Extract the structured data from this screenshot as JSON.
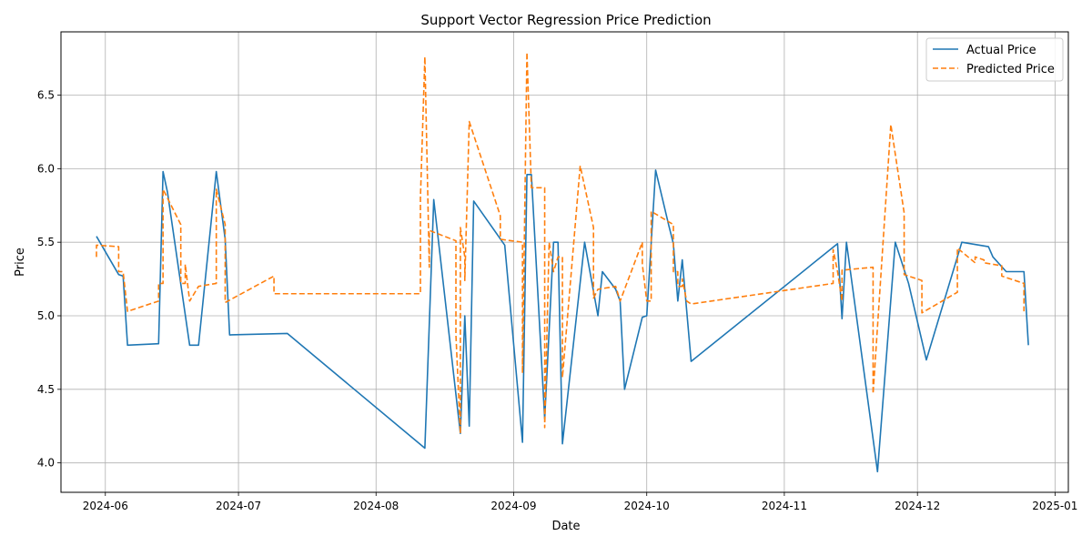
{
  "chart_data": {
    "type": "line",
    "title": "Support Vector Regression Price Prediction",
    "xlabel": "Date",
    "ylabel": "Price",
    "xlim": [
      "2024-05-22",
      "2025-01-04"
    ],
    "ylim": [
      3.8,
      6.93
    ],
    "x_ticks": [
      "2024-06",
      "2024-07",
      "2024-08",
      "2024-09",
      "2024-10",
      "2024-11",
      "2024-12",
      "2025-01"
    ],
    "y_ticks": [
      "4.0",
      "4.5",
      "5.0",
      "5.5",
      "6.0",
      "6.5"
    ],
    "grid": true,
    "legend": "top-right",
    "series": [
      {
        "name": "Actual Price",
        "color": "#1f77b4",
        "style": "solid",
        "points": [
          [
            "2024-05-30",
            5.54
          ],
          [
            "2024-06-04",
            5.28
          ],
          [
            "2024-06-05",
            5.27
          ],
          [
            "2024-06-06",
            4.8
          ],
          [
            "2024-06-13",
            4.81
          ],
          [
            "2024-06-14",
            5.98
          ],
          [
            "2024-06-15",
            5.84
          ],
          [
            "2024-06-20",
            4.8
          ],
          [
            "2024-06-22",
            4.8
          ],
          [
            "2024-06-26",
            5.98
          ],
          [
            "2024-06-28",
            5.52
          ],
          [
            "2024-06-29",
            4.87
          ],
          [
            "2024-07-12",
            4.88
          ],
          [
            "2024-08-12",
            4.1
          ],
          [
            "2024-08-14",
            5.79
          ],
          [
            "2024-08-20",
            4.2
          ],
          [
            "2024-08-21",
            5.0
          ],
          [
            "2024-08-22",
            4.25
          ],
          [
            "2024-08-23",
            5.78
          ],
          [
            "2024-08-30",
            5.48
          ],
          [
            "2024-09-03",
            4.14
          ],
          [
            "2024-09-04",
            5.96
          ],
          [
            "2024-09-05",
            5.96
          ],
          [
            "2024-09-08",
            4.3
          ],
          [
            "2024-09-10",
            5.5
          ],
          [
            "2024-09-11",
            5.5
          ],
          [
            "2024-09-12",
            4.13
          ],
          [
            "2024-09-17",
            5.5
          ],
          [
            "2024-09-20",
            5.0
          ],
          [
            "2024-09-21",
            5.3
          ],
          [
            "2024-09-24",
            5.18
          ],
          [
            "2024-09-25",
            5.1
          ],
          [
            "2024-09-26",
            4.5
          ],
          [
            "2024-09-30",
            4.99
          ],
          [
            "2024-10-01",
            5.0
          ],
          [
            "2024-10-03",
            5.99
          ],
          [
            "2024-10-06",
            5.61
          ],
          [
            "2024-10-07",
            5.49
          ],
          [
            "2024-10-08",
            5.1
          ],
          [
            "2024-10-09",
            5.38
          ],
          [
            "2024-10-11",
            4.69
          ],
          [
            "2024-11-13",
            5.49
          ],
          [
            "2024-11-14",
            4.98
          ],
          [
            "2024-11-15",
            5.5
          ],
          [
            "2024-11-22",
            3.94
          ],
          [
            "2024-11-26",
            5.5
          ],
          [
            "2024-11-29",
            5.22
          ],
          [
            "2024-12-03",
            4.7
          ],
          [
            "2024-12-11",
            5.5
          ],
          [
            "2024-12-17",
            5.47
          ],
          [
            "2024-12-18",
            5.4
          ],
          [
            "2024-12-21",
            5.3
          ],
          [
            "2024-12-25",
            5.3
          ],
          [
            "2024-12-26",
            4.8
          ]
        ]
      },
      {
        "name": "Predicted Price",
        "color": "#ff7f0e",
        "style": "dashed",
        "points": [
          [
            "2024-05-30",
            5.4
          ],
          [
            "2024-05-30",
            5.48
          ],
          [
            "2024-06-04",
            5.47
          ],
          [
            "2024-06-04",
            5.3
          ],
          [
            "2024-06-05",
            5.3
          ],
          [
            "2024-06-06",
            5.03
          ],
          [
            "2024-06-13",
            5.1
          ],
          [
            "2024-06-13",
            5.22
          ],
          [
            "2024-06-14",
            5.22
          ],
          [
            "2024-06-14",
            5.86
          ],
          [
            "2024-06-18",
            5.62
          ],
          [
            "2024-06-18",
            5.22
          ],
          [
            "2024-06-19",
            5.22
          ],
          [
            "2024-06-19",
            5.35
          ],
          [
            "2024-06-20",
            5.1
          ],
          [
            "2024-06-22",
            5.2
          ],
          [
            "2024-06-26",
            5.22
          ],
          [
            "2024-06-26",
            5.86
          ],
          [
            "2024-06-28",
            5.62
          ],
          [
            "2024-06-28",
            5.09
          ],
          [
            "2024-07-09",
            5.27
          ],
          [
            "2024-07-09",
            5.15
          ],
          [
            "2024-08-11",
            5.15
          ],
          [
            "2024-08-11",
            5.8
          ],
          [
            "2024-08-12",
            6.76
          ],
          [
            "2024-08-13",
            5.33
          ],
          [
            "2024-08-13",
            5.58
          ],
          [
            "2024-08-19",
            5.51
          ],
          [
            "2024-08-19",
            4.87
          ],
          [
            "2024-08-20",
            4.2
          ],
          [
            "2024-08-20",
            5.6
          ],
          [
            "2024-08-21",
            5.4
          ],
          [
            "2024-08-21",
            5.24
          ],
          [
            "2024-08-22",
            6.32
          ],
          [
            "2024-08-29",
            5.68
          ],
          [
            "2024-08-29",
            5.52
          ],
          [
            "2024-09-03",
            5.5
          ],
          [
            "2024-09-03",
            4.61
          ],
          [
            "2024-09-04",
            6.79
          ],
          [
            "2024-09-05",
            5.87
          ],
          [
            "2024-09-08",
            5.87
          ],
          [
            "2024-09-08",
            4.24
          ],
          [
            "2024-09-09",
            5.5
          ],
          [
            "2024-09-10",
            5.3
          ],
          [
            "2024-09-11",
            5.4
          ],
          [
            "2024-09-12",
            5.4
          ],
          [
            "2024-09-12",
            4.58
          ],
          [
            "2024-09-16",
            6.02
          ],
          [
            "2024-09-19",
            5.6
          ],
          [
            "2024-09-19",
            5.12
          ],
          [
            "2024-09-20",
            5.18
          ],
          [
            "2024-09-24",
            5.2
          ],
          [
            "2024-09-25",
            5.1
          ],
          [
            "2024-09-30",
            5.5
          ],
          [
            "2024-09-30",
            5.35
          ],
          [
            "2024-10-01",
            5.1
          ],
          [
            "2024-10-02",
            5.1
          ],
          [
            "2024-10-02",
            5.71
          ],
          [
            "2024-10-07",
            5.62
          ],
          [
            "2024-10-07",
            5.3
          ],
          [
            "2024-10-08",
            5.3
          ],
          [
            "2024-10-08",
            5.2
          ],
          [
            "2024-10-09",
            5.2
          ],
          [
            "2024-10-09",
            5.25
          ],
          [
            "2024-10-10",
            5.1
          ],
          [
            "2024-10-11",
            5.08
          ],
          [
            "2024-11-12",
            5.22
          ],
          [
            "2024-11-12",
            5.45
          ],
          [
            "2024-11-13",
            5.3
          ],
          [
            "2024-11-14",
            5.1
          ],
          [
            "2024-11-14",
            5.31
          ],
          [
            "2024-11-21",
            5.33
          ],
          [
            "2024-11-21",
            4.47
          ],
          [
            "2024-11-25",
            6.3
          ],
          [
            "2024-11-28",
            5.7
          ],
          [
            "2024-11-28",
            5.28
          ],
          [
            "2024-12-02",
            5.24
          ],
          [
            "2024-12-02",
            5.02
          ],
          [
            "2024-12-10",
            5.16
          ],
          [
            "2024-12-10",
            5.46
          ],
          [
            "2024-12-14",
            5.36
          ],
          [
            "2024-12-14",
            5.4
          ],
          [
            "2024-12-16",
            5.38
          ],
          [
            "2024-12-16",
            5.36
          ],
          [
            "2024-12-20",
            5.34
          ],
          [
            "2024-12-20",
            5.27
          ],
          [
            "2024-12-25",
            5.22
          ],
          [
            "2024-12-25",
            5.03
          ]
        ]
      }
    ]
  }
}
